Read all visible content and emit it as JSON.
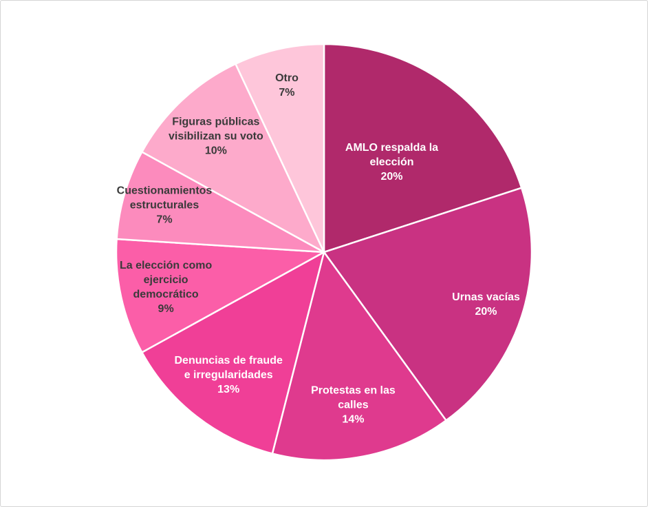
{
  "chart_data": {
    "type": "pie",
    "start_angle_deg": 0,
    "direction": "clockwise",
    "slices": [
      {
        "label": [
          "AMLO respalda la",
          "elección"
        ],
        "pct_label": "20%",
        "value": 20,
        "color": "#b0296b",
        "text_color": "#ffffff"
      },
      {
        "label": [
          "Urnas vacías"
        ],
        "pct_label": "20%",
        "value": 20,
        "color": "#c93282",
        "text_color": "#ffffff"
      },
      {
        "label": [
          "Protestas en las",
          "calles"
        ],
        "pct_label": "14%",
        "value": 14,
        "color": "#df3a8e",
        "text_color": "#ffffff"
      },
      {
        "label": [
          "Denuncias de fraude",
          "e irregularidades"
        ],
        "pct_label": "13%",
        "value": 13,
        "color": "#f03f97",
        "text_color": "#ffffff"
      },
      {
        "label": [
          "La elección como",
          "ejercicio",
          "democrático"
        ],
        "pct_label": "9%",
        "value": 9,
        "color": "#fb5ea8",
        "text_color": "#3a3a3a"
      },
      {
        "label": [
          "Cuestionamientos",
          "estructurales"
        ],
        "pct_label": "7%",
        "value": 7,
        "color": "#fc8bbd",
        "text_color": "#3a3a3a"
      },
      {
        "label": [
          "Figuras públicas",
          "visibilizan su voto"
        ],
        "pct_label": "10%",
        "value": 10,
        "color": "#fdaacb",
        "text_color": "#3a3a3a"
      },
      {
        "label": [
          "Otro"
        ],
        "pct_label": "7%",
        "value": 7,
        "color": "#fec6da",
        "text_color": "#3a3a3a"
      }
    ]
  }
}
